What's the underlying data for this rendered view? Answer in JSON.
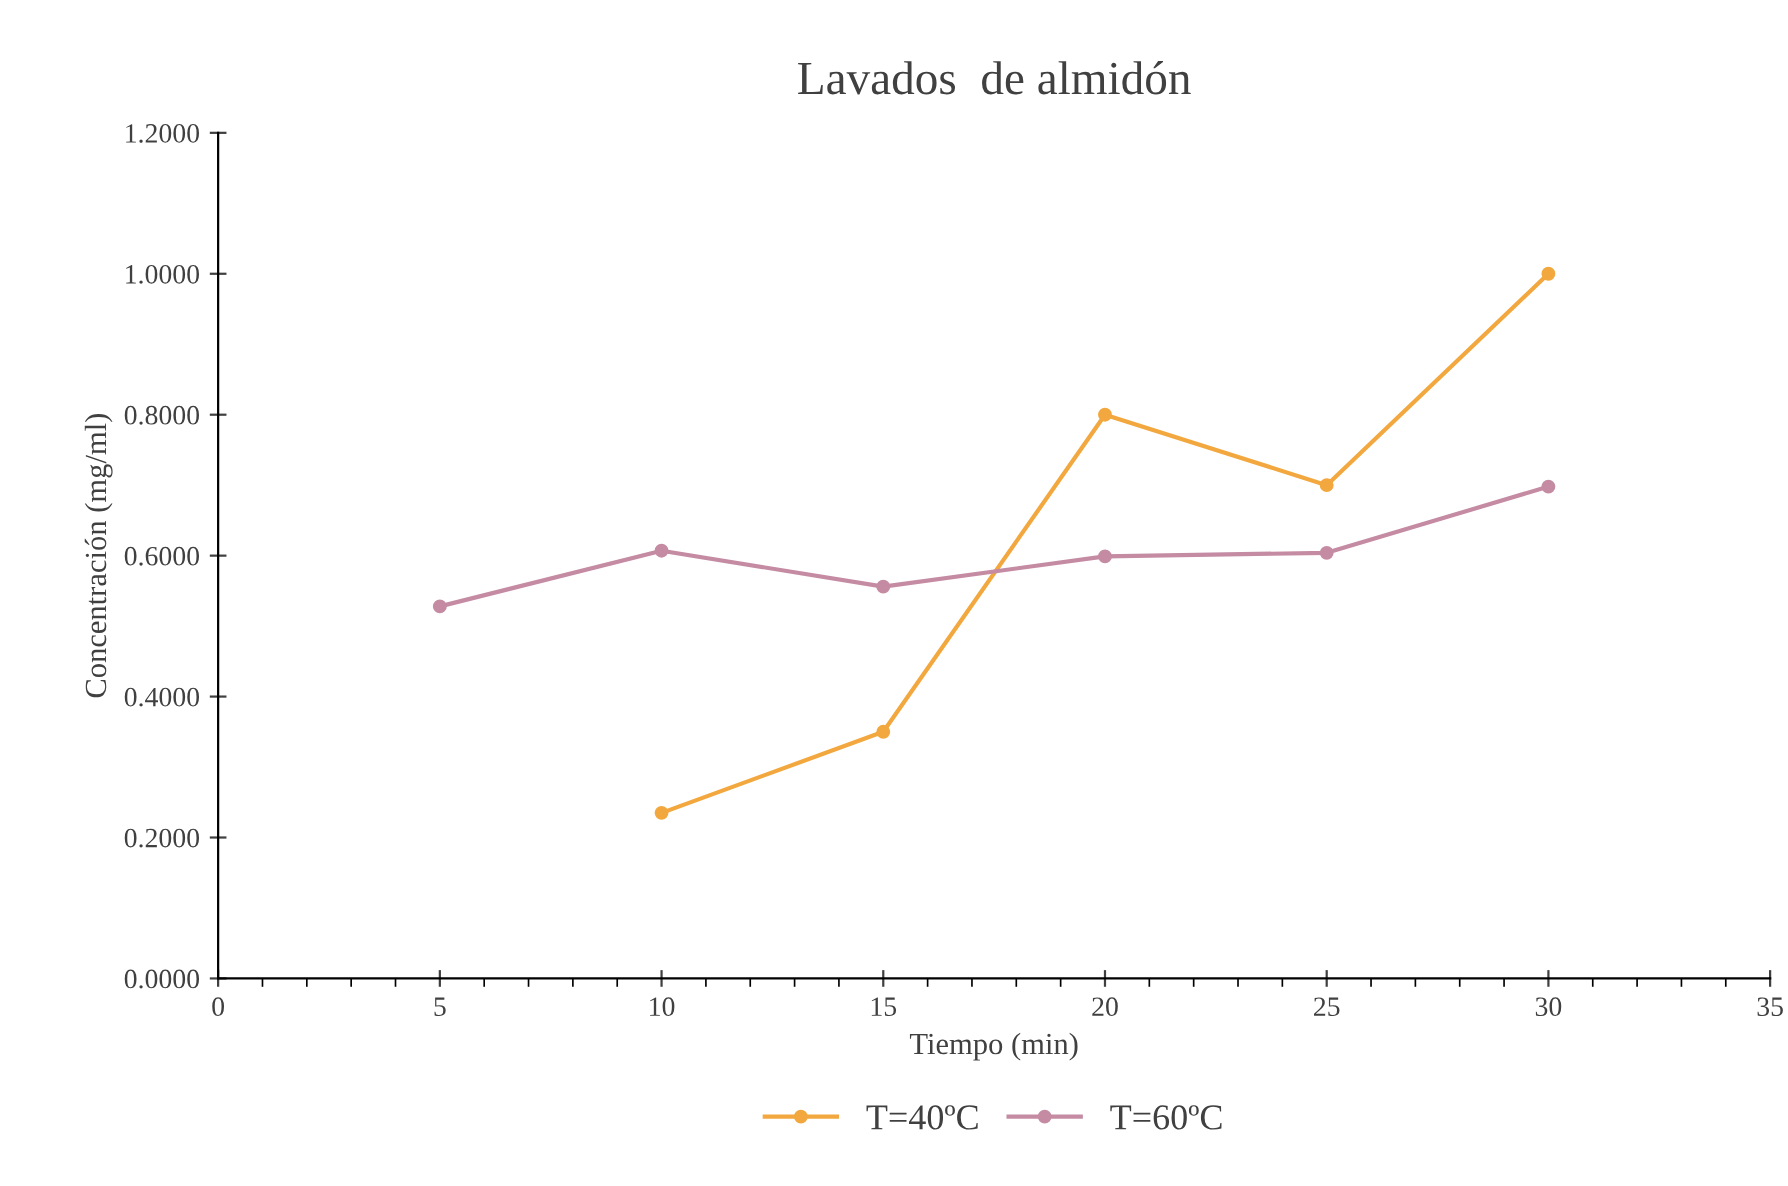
{
  "chart_data": {
    "type": "line",
    "title": "Lavados  de almidón",
    "xlabel": "Tiempo (min)",
    "ylabel": "Concentración (mg/ml)",
    "series": [
      {
        "name": "T=40ºC",
        "color": "#f2a83e",
        "x": [
          10,
          15,
          20,
          25,
          30
        ],
        "values": [
          0.235,
          0.35,
          0.8,
          0.7,
          1.0
        ]
      },
      {
        "name": "T=60ºC",
        "color": "#c48ba2",
        "x": [
          5,
          10,
          15,
          20,
          25,
          30
        ],
        "values": [
          0.528,
          0.607,
          0.556,
          0.599,
          0.604,
          0.698
        ]
      }
    ],
    "xlim": [
      0,
      35
    ],
    "xticks": [
      0,
      5,
      10,
      15,
      20,
      25,
      30,
      35
    ],
    "ylim": [
      0,
      1.2
    ],
    "yticks": [
      {
        "value": 0,
        "label": "0.0000"
      },
      {
        "value": 0.2,
        "label": "0.2000"
      },
      {
        "value": 0.4,
        "label": "0.4000"
      },
      {
        "value": 0.6,
        "label": "0.6000"
      },
      {
        "value": 0.8,
        "label": "0.8000"
      },
      {
        "value": 1.0,
        "label": "1.0000"
      },
      {
        "value": 1.2,
        "label": "1.2000"
      }
    ],
    "grid": false,
    "legend": "bottom",
    "marker": "circle",
    "line_style": "solid"
  }
}
